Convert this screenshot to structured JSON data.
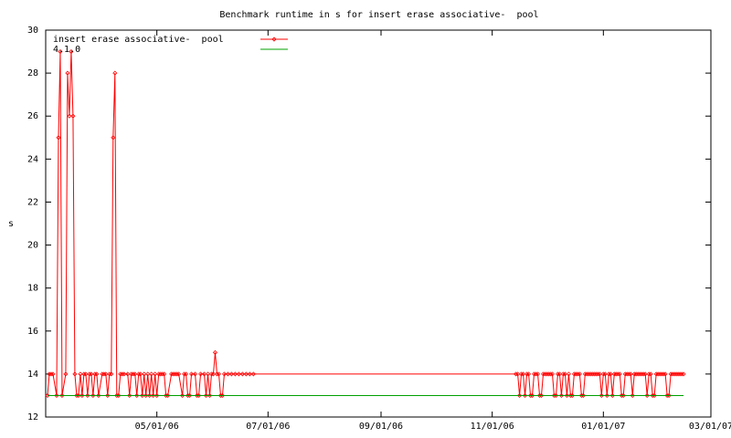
{
  "chart_data": {
    "type": "line",
    "title": "Benchmark runtime in s for insert erase associative-  pool",
    "ylabel": "s",
    "xlim": [
      "2006-03-01",
      "2007-03-01"
    ],
    "xticks": [
      {
        "value": "2006-05-01",
        "label": "05/01/06"
      },
      {
        "value": "2006-07-01",
        "label": "07/01/06"
      },
      {
        "value": "2006-09-01",
        "label": "09/01/06"
      },
      {
        "value": "2006-11-01",
        "label": "11/01/06"
      },
      {
        "value": "2007-01-01",
        "label": "01/01/07"
      },
      {
        "value": "2007-03-01",
        "label": "03/01/07"
      }
    ],
    "ylim": [
      12,
      30
    ],
    "yticks": [
      12,
      14,
      16,
      18,
      20,
      22,
      24,
      26,
      28,
      30
    ],
    "legend": "top-left",
    "series": [
      {
        "name": "insert erase associative-  pool",
        "color": "#ff0000",
        "markers": true,
        "x": [
          "2006-03-02",
          "2006-03-03",
          "2006-03-04",
          "2006-03-05",
          "2006-03-07",
          "2006-03-08",
          "2006-03-09",
          "2006-03-10",
          "2006-03-12",
          "2006-03-13",
          "2006-03-14",
          "2006-03-15",
          "2006-03-16",
          "2006-03-17",
          "2006-03-18",
          "2006-03-19",
          "2006-03-20",
          "2006-03-21",
          "2006-03-22",
          "2006-03-23",
          "2006-03-24",
          "2006-03-25",
          "2006-03-26",
          "2006-03-27",
          "2006-03-28",
          "2006-03-29",
          "2006-03-30",
          "2006-04-01",
          "2006-04-02",
          "2006-04-03",
          "2006-04-04",
          "2006-04-05",
          "2006-04-06",
          "2006-04-07",
          "2006-04-08",
          "2006-04-09",
          "2006-04-10",
          "2006-04-11",
          "2006-04-12",
          "2006-04-13",
          "2006-04-15",
          "2006-04-16",
          "2006-04-17",
          "2006-04-18",
          "2006-04-19",
          "2006-04-20",
          "2006-04-21",
          "2006-04-22",
          "2006-04-23",
          "2006-04-24",
          "2006-04-25",
          "2006-04-26",
          "2006-04-27",
          "2006-04-28",
          "2006-04-29",
          "2006-04-30",
          "2006-05-01",
          "2006-05-02",
          "2006-05-03",
          "2006-05-04",
          "2006-05-05",
          "2006-05-06",
          "2006-05-07",
          "2006-05-09",
          "2006-05-10",
          "2006-05-11",
          "2006-05-12",
          "2006-05-13",
          "2006-05-15",
          "2006-05-16",
          "2006-05-17",
          "2006-05-18",
          "2006-05-19",
          "2006-05-20",
          "2006-05-22",
          "2006-05-23",
          "2006-05-24",
          "2006-05-25",
          "2006-05-27",
          "2006-05-28",
          "2006-05-29",
          "2006-05-30",
          "2006-05-31",
          "2006-06-01",
          "2006-06-02",
          "2006-06-03",
          "2006-06-04",
          "2006-06-05",
          "2006-06-06",
          "2006-06-07",
          "2006-06-09",
          "2006-06-11",
          "2006-06-13",
          "2006-06-15",
          "2006-06-17",
          "2006-06-19",
          "2006-06-21",
          "2006-06-23",
          "2006-11-14",
          "2006-11-15",
          "2006-11-16",
          "2006-11-17",
          "2006-11-18",
          "2006-11-19",
          "2006-11-20",
          "2006-11-21",
          "2006-11-22",
          "2006-11-23",
          "2006-11-24",
          "2006-11-25",
          "2006-11-26",
          "2006-11-27",
          "2006-11-28",
          "2006-11-29",
          "2006-11-30",
          "2006-12-01",
          "2006-12-02",
          "2006-12-03",
          "2006-12-04",
          "2006-12-05",
          "2006-12-06",
          "2006-12-07",
          "2006-12-08",
          "2006-12-09",
          "2006-12-10",
          "2006-12-11",
          "2006-12-12",
          "2006-12-13",
          "2006-12-14",
          "2006-12-15",
          "2006-12-16",
          "2006-12-17",
          "2006-12-18",
          "2006-12-19",
          "2006-12-20",
          "2006-12-21",
          "2006-12-22",
          "2006-12-23",
          "2006-12-24",
          "2006-12-25",
          "2006-12-26",
          "2006-12-27",
          "2006-12-28",
          "2006-12-29",
          "2006-12-30",
          "2006-12-31",
          "2007-01-01",
          "2007-01-02",
          "2007-01-03",
          "2007-01-04",
          "2007-01-05",
          "2007-01-06",
          "2007-01-07",
          "2007-01-08",
          "2007-01-09",
          "2007-01-10",
          "2007-01-11",
          "2007-01-12",
          "2007-01-13",
          "2007-01-14",
          "2007-01-15",
          "2007-01-16",
          "2007-01-17",
          "2007-01-18",
          "2007-01-19",
          "2007-01-20",
          "2007-01-21",
          "2007-01-22",
          "2007-01-23",
          "2007-01-24",
          "2007-01-25",
          "2007-01-26",
          "2007-01-27",
          "2007-01-28",
          "2007-01-29",
          "2007-01-30",
          "2007-01-31",
          "2007-02-01",
          "2007-02-02",
          "2007-02-03",
          "2007-02-04",
          "2007-02-05",
          "2007-02-06",
          "2007-02-07",
          "2007-02-08",
          "2007-02-09",
          "2007-02-10",
          "2007-02-11",
          "2007-02-12",
          "2007-02-13",
          "2007-02-14"
        ],
        "values": [
          13,
          14,
          14,
          14,
          13,
          25,
          29,
          13,
          14,
          28,
          26,
          29,
          26,
          14,
          13,
          13,
          14,
          13,
          14,
          14,
          13,
          14,
          14,
          13,
          14,
          14,
          13,
          14,
          14,
          14,
          13,
          14,
          14,
          25,
          28,
          13,
          13,
          14,
          14,
          14,
          14,
          13,
          14,
          14,
          14,
          13,
          14,
          14,
          13,
          14,
          13,
          14,
          13,
          14,
          13,
          14,
          13,
          14,
          14,
          14,
          14,
          13,
          13,
          14,
          14,
          14,
          14,
          14,
          13,
          14,
          14,
          13,
          13,
          14,
          14,
          13,
          13,
          14,
          14,
          13,
          14,
          13,
          14,
          14,
          15,
          14,
          14,
          13,
          13,
          14,
          14,
          14,
          14,
          14,
          14,
          14,
          14,
          14,
          14,
          14,
          13,
          14,
          14,
          13,
          14,
          14,
          13,
          13,
          14,
          14,
          14,
          13,
          13,
          14,
          14,
          14,
          14,
          14,
          14,
          13,
          13,
          14,
          14,
          13,
          14,
          14,
          13,
          14,
          13,
          13,
          14,
          14,
          14,
          14,
          13,
          13,
          14,
          14,
          14,
          14,
          14,
          14,
          14,
          14,
          14,
          13,
          14,
          14,
          13,
          14,
          14,
          13,
          14,
          14,
          14,
          14,
          13,
          13,
          14,
          14,
          14,
          14,
          13,
          14,
          14,
          14,
          14,
          14,
          14,
          14,
          13,
          14,
          14,
          13,
          13,
          14,
          14,
          14,
          14,
          14,
          14,
          13,
          13,
          14,
          14,
          14,
          14,
          14,
          14,
          14,
          14
        ]
      },
      {
        "name": "4.1.0",
        "color": "#00a000",
        "markers": false,
        "x": [
          "2006-03-02",
          "2007-02-14"
        ],
        "values": [
          13,
          13
        ]
      }
    ]
  }
}
